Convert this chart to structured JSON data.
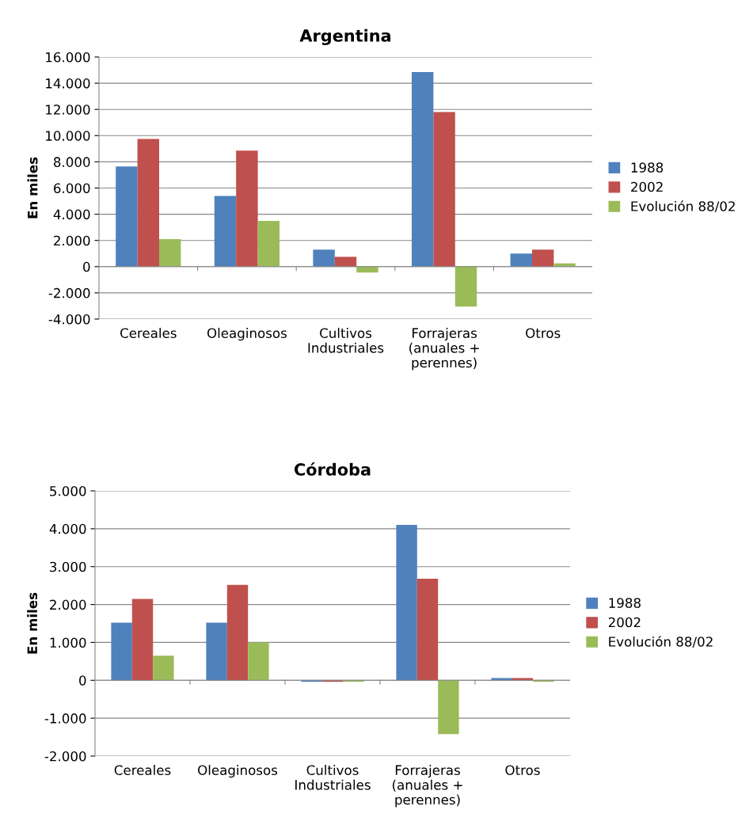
{
  "chart_data": [
    {
      "type": "bar",
      "title": "Argentina",
      "ylabel": "En miles",
      "categories": [
        "Cereales",
        "Oleaginosos",
        "Cultivos\nIndustriales",
        "Forrajeras\n(anuales +\nperennes)",
        "Otros"
      ],
      "series": [
        {
          "name": "1988",
          "color": "#4f81bd",
          "values": [
            7650,
            5400,
            1300,
            14850,
            1000
          ]
        },
        {
          "name": "2002",
          "color": "#c0504d",
          "values": [
            9750,
            8850,
            750,
            11800,
            1300
          ]
        },
        {
          "name": "Evolución 88/02",
          "color": "#9bbb59",
          "values": [
            2100,
            3500,
            -450,
            -3050,
            250
          ]
        }
      ],
      "ylim": [
        -4000,
        16000
      ],
      "yticks": [
        {
          "value": -4000,
          "label": "-4.000"
        },
        {
          "value": -2000,
          "label": "-2.000"
        },
        0,
        {
          "value": 2000,
          "label": "2.000"
        },
        {
          "value": 4000,
          "label": "4.000"
        },
        {
          "value": 6000,
          "label": "6.000"
        },
        {
          "value": 8000,
          "label": "8.000"
        },
        {
          "value": 10000,
          "label": "10.000"
        },
        {
          "value": 12000,
          "label": "12.000"
        },
        {
          "value": 14000,
          "label": "14.000"
        },
        {
          "value": 16000,
          "label": "16.000"
        }
      ],
      "grid": "y",
      "legend": "right"
    },
    {
      "type": "bar",
      "title": "Córdoba",
      "ylabel": "En miles",
      "categories": [
        "Cereales",
        "Oleaginosos",
        "Cultivos\nIndustriales",
        "Forrajeras\n(anuales +\nperennes)",
        "Otros"
      ],
      "series": [
        {
          "name": "1988",
          "color": "#4f81bd",
          "values": [
            1520,
            1520,
            -40,
            4100,
            60
          ]
        },
        {
          "name": "2002",
          "color": "#c0504d",
          "values": [
            2150,
            2520,
            -40,
            2680,
            60
          ]
        },
        {
          "name": "Evolución 88/02",
          "color": "#9bbb59",
          "values": [
            650,
            1000,
            -40,
            -1420,
            -40
          ]
        }
      ],
      "ylim": [
        -2000,
        5000
      ],
      "yticks": [
        {
          "value": -2000,
          "label": "-2.000"
        },
        {
          "value": -1000,
          "label": "-1.000"
        },
        0,
        {
          "value": 1000,
          "label": "1.000"
        },
        {
          "value": 2000,
          "label": "2.000"
        },
        {
          "value": 3000,
          "label": "3.000"
        },
        {
          "value": 4000,
          "label": "4.000"
        },
        {
          "value": 5000,
          "label": "5.000"
        }
      ],
      "grid": "y",
      "legend": "right"
    }
  ]
}
